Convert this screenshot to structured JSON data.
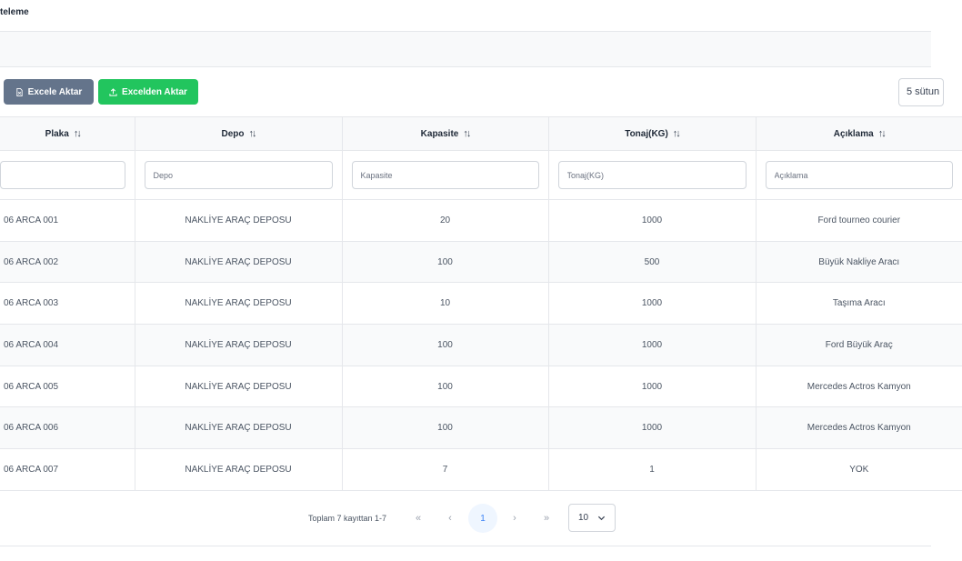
{
  "page": {
    "title": "teleme"
  },
  "toolbar": {
    "export_label": "Excele Aktar",
    "import_label": "Excelden Aktar",
    "columns_label": "5 sütun"
  },
  "table": {
    "columns": [
      {
        "key": "plaka",
        "label": "Plaka",
        "placeholder": ""
      },
      {
        "key": "depo",
        "label": "Depo",
        "placeholder": "Depo"
      },
      {
        "key": "kapasite",
        "label": "Kapasite",
        "placeholder": "Kapasite"
      },
      {
        "key": "tonaj",
        "label": "Tonaj(KG)",
        "placeholder": "Tonaj(KG)"
      },
      {
        "key": "aciklama",
        "label": "Açıklama",
        "placeholder": "Açıklama"
      }
    ],
    "rows": [
      {
        "plaka": "06 ARCA 001",
        "depo": "NAKLİYE ARAÇ DEPOSU",
        "kapasite": "20",
        "tonaj": "1000",
        "aciklama": "Ford tourneo courier"
      },
      {
        "plaka": "06 ARCA 002",
        "depo": "NAKLİYE ARAÇ DEPOSU",
        "kapasite": "100",
        "tonaj": "500",
        "aciklama": "Büyük Nakliye Aracı"
      },
      {
        "plaka": "06 ARCA 003",
        "depo": "NAKLİYE ARAÇ DEPOSU",
        "kapasite": "10",
        "tonaj": "1000",
        "aciklama": "Taşıma Aracı"
      },
      {
        "plaka": "06 ARCA 004",
        "depo": "NAKLİYE ARAÇ DEPOSU",
        "kapasite": "100",
        "tonaj": "1000",
        "aciklama": "Ford Büyük Araç"
      },
      {
        "plaka": "06 ARCA 005",
        "depo": "NAKLİYE ARAÇ DEPOSU",
        "kapasite": "100",
        "tonaj": "1000",
        "aciklama": "Mercedes Actros Kamyon"
      },
      {
        "plaka": "06 ARCA 006",
        "depo": "NAKLİYE ARAÇ DEPOSU",
        "kapasite": "100",
        "tonaj": "1000",
        "aciklama": "Mercedes Actros Kamyon"
      },
      {
        "plaka": "06 ARCA 007",
        "depo": "NAKLİYE ARAÇ DEPOSU",
        "kapasite": "7",
        "tonaj": "1",
        "aciklama": "YOK"
      }
    ]
  },
  "pagination": {
    "info": "Toplam 7 kayıttan 1-7",
    "first": "«",
    "prev": "‹",
    "current_page": "1",
    "next": "›",
    "last": "»",
    "rows_per_page": "10"
  },
  "icons": {
    "export": "file-excel-icon",
    "import": "upload-icon",
    "sort": "sort-icon",
    "rows_dropdown": "chevron-down-icon"
  },
  "colors": {
    "export_button": "#64748b",
    "import_button": "#22c55e",
    "active_page": "#3b82f6"
  }
}
